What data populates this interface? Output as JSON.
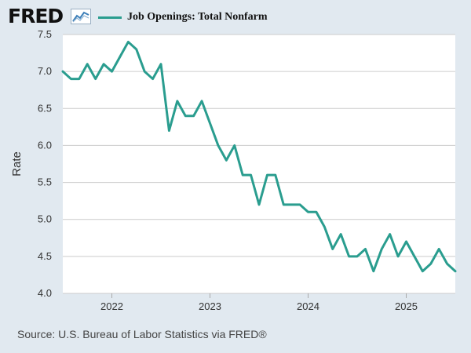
{
  "header": {
    "logo_text": "FRED",
    "logo_icon": "line-chart-icon"
  },
  "colors": {
    "series": "#2a9d8f",
    "background": "#e1e9f0",
    "plot_background": "#ffffff",
    "grid": "#cccccc",
    "text": "#333333"
  },
  "chart_data": {
    "type": "line",
    "ylabel": "Rate",
    "ylim": [
      4.0,
      7.5
    ],
    "yticks": [
      "4.0",
      "4.5",
      "5.0",
      "5.5",
      "6.0",
      "6.5",
      "7.0",
      "7.5"
    ],
    "xlim": [
      "2021-07",
      "2025-07"
    ],
    "xticks": [
      "2022",
      "2023",
      "2024",
      "2025"
    ],
    "grid": true,
    "legend_position": "top",
    "series": [
      {
        "name": "Job Openings: Total Nonfarm",
        "color": "#2a9d8f",
        "points": [
          [
            "2021-07",
            7.0
          ],
          [
            "2021-08",
            6.9
          ],
          [
            "2021-09",
            6.9
          ],
          [
            "2021-10",
            7.1
          ],
          [
            "2021-11",
            6.9
          ],
          [
            "2021-12",
            7.1
          ],
          [
            "2022-01",
            7.0
          ],
          [
            "2022-02",
            7.2
          ],
          [
            "2022-03",
            7.4
          ],
          [
            "2022-04",
            7.3
          ],
          [
            "2022-05",
            7.0
          ],
          [
            "2022-06",
            6.9
          ],
          [
            "2022-07",
            7.1
          ],
          [
            "2022-08",
            6.2
          ],
          [
            "2022-09",
            6.6
          ],
          [
            "2022-10",
            6.4
          ],
          [
            "2022-11",
            6.4
          ],
          [
            "2022-12",
            6.6
          ],
          [
            "2023-01",
            6.3
          ],
          [
            "2023-02",
            6.0
          ],
          [
            "2023-03",
            5.8
          ],
          [
            "2023-04",
            6.0
          ],
          [
            "2023-05",
            5.6
          ],
          [
            "2023-06",
            5.6
          ],
          [
            "2023-07",
            5.2
          ],
          [
            "2023-08",
            5.6
          ],
          [
            "2023-09",
            5.6
          ],
          [
            "2023-10",
            5.2
          ],
          [
            "2023-11",
            5.2
          ],
          [
            "2023-12",
            5.2
          ],
          [
            "2024-01",
            5.1
          ],
          [
            "2024-02",
            5.1
          ],
          [
            "2024-03",
            4.9
          ],
          [
            "2024-04",
            4.6
          ],
          [
            "2024-05",
            4.8
          ],
          [
            "2024-06",
            4.5
          ],
          [
            "2024-07",
            4.5
          ],
          [
            "2024-08",
            4.6
          ],
          [
            "2024-09",
            4.3
          ],
          [
            "2024-10",
            4.6
          ],
          [
            "2024-11",
            4.8
          ],
          [
            "2024-12",
            4.5
          ],
          [
            "2025-01",
            4.7
          ],
          [
            "2025-02",
            4.5
          ],
          [
            "2025-03",
            4.3
          ],
          [
            "2025-04",
            4.4
          ],
          [
            "2025-05",
            4.6
          ],
          [
            "2025-06",
            4.4
          ],
          [
            "2025-07",
            4.3
          ]
        ]
      }
    ]
  },
  "footer": {
    "source": "Source: U.S. Bureau of Labor Statistics via FRED®"
  }
}
